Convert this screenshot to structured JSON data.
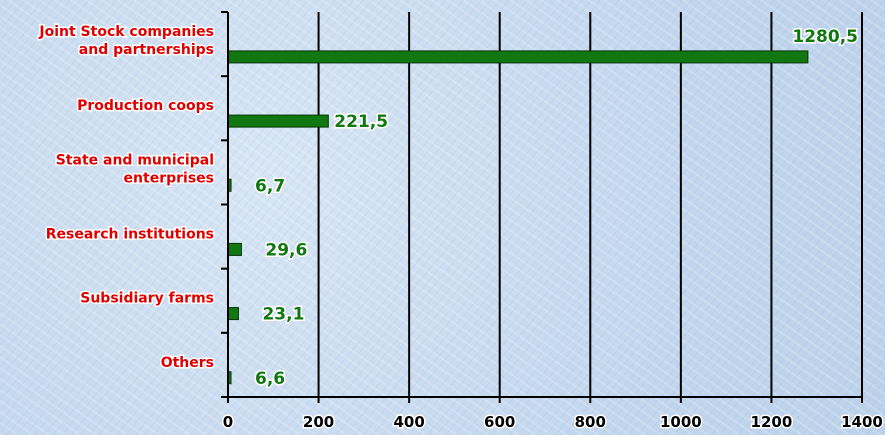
{
  "chart_data": {
    "type": "bar",
    "orientation": "horizontal",
    "categories": [
      [
        "Joint Stock companies",
        "and partnerships"
      ],
      [
        "Production coops"
      ],
      [
        "State and municipal",
        "enterprises"
      ],
      [
        "Research institutions"
      ],
      [
        "Subsidiary farms"
      ],
      [
        "Others"
      ]
    ],
    "values": [
      1280.5,
      221.5,
      6.7,
      29.6,
      23.1,
      6.6
    ],
    "value_labels": [
      "1280,5",
      "221,5",
      "6,7",
      "29,6",
      "23,1",
      "6,6"
    ],
    "xticks": [
      0,
      200,
      400,
      600,
      800,
      1000,
      1200,
      1400
    ],
    "xlim": [
      0,
      1400
    ],
    "grid": true,
    "title": "",
    "xlabel": "",
    "ylabel": "",
    "colors": {
      "bar": "#117711",
      "category_label": "#e00000",
      "value_label": "#117711",
      "grid": "#000000"
    }
  }
}
